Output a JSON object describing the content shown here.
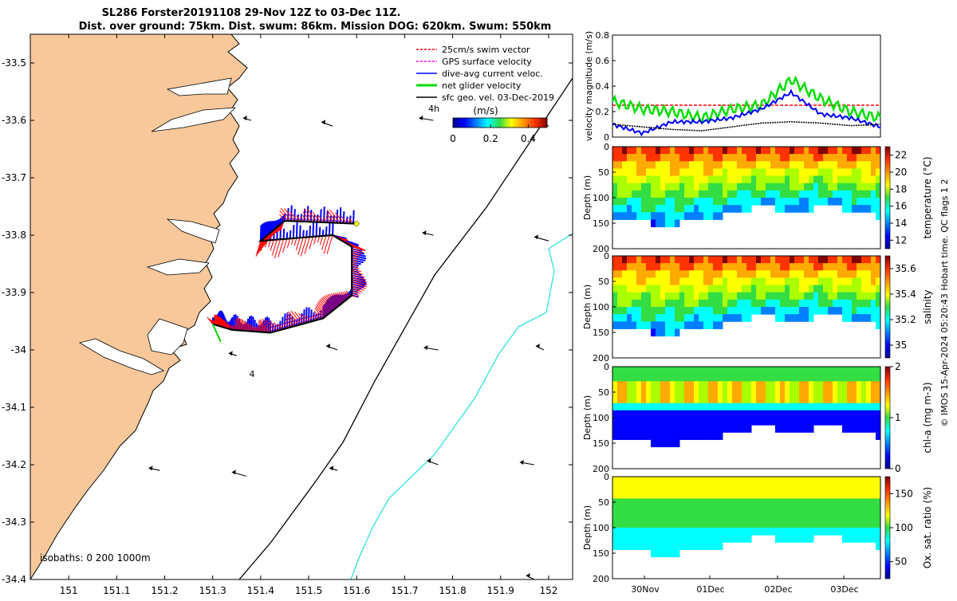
{
  "title": {
    "line1": "SL286 Forster20191108 29-Nov 12Z to 03-Dec 11Z.",
    "line2": "Dist. over ground: 75km. Dist. swum: 86km. Mission DOG: 620km. Swum: 550km"
  },
  "map": {
    "xticks": [
      "151",
      "151.1",
      "151.2",
      "151.3",
      "151.4",
      "151.5",
      "151.6",
      "151.7",
      "151.8",
      "151.9",
      "152"
    ],
    "yticks": [
      "-33.5",
      "-33.6",
      "-33.7",
      "-33.8",
      "-33.9",
      "-34",
      "-34.1",
      "-34.2",
      "-34.3",
      "-34.4"
    ],
    "legend": [
      {
        "label": "25cm/s swim vector",
        "color": "#ff0000"
      },
      {
        "label": "GPS surface velocity",
        "color": "#ff00ff"
      },
      {
        "label": "dive-avg current veloc.",
        "color": "#0000ff"
      },
      {
        "label": "net glider velocity",
        "color": "#00dd00"
      },
      {
        "label": "sfc geo. vel. 03-Dec-2019",
        "color": "#000000"
      }
    ],
    "colorbar": {
      "unit": "(m/s)",
      "ticks": [
        "0",
        "0.2",
        "0.4"
      ]
    },
    "isobaths": "isobaths: 0   200  1000m",
    "label_4h": "4h",
    "label_4": "4",
    "colors": {
      "land": "#f8c89b",
      "isobath200": "#000000",
      "isobath1000": "#33e0e0"
    }
  },
  "panels": {
    "velocity": {
      "ylabel": "velocity magnitude (m/s)",
      "yticks": [
        "0",
        "0.2",
        "0.4",
        "0.6",
        "0.8"
      ]
    },
    "depth_ylabel": "Depth (m)",
    "depth_ticks": [
      "0",
      "50",
      "100",
      "150",
      "200"
    ],
    "temperature": {
      "label": "temperature (°C)",
      "ticks": [
        "12",
        "14",
        "16",
        "18",
        "20",
        "22"
      ]
    },
    "salinity": {
      "label": "salinity",
      "ticks": [
        "35",
        "35.2",
        "35.4",
        "35.6"
      ]
    },
    "chla": {
      "label": "chl-a (mg m-3)",
      "ticks": [
        "0",
        "1",
        "2"
      ]
    },
    "oxygen": {
      "label": "Ox. sat. ratio (%)",
      "ticks": [
        "50",
        "100",
        "150"
      ]
    },
    "time_ticks": [
      "30Nov",
      "01Dec",
      "02Dec",
      "03Dec"
    ]
  },
  "footer": "© IMOS 15-Apr-2024 05:20:43 Hobart time. QC flags 1  2",
  "chart_data": [
    {
      "type": "scatter",
      "title": "SL286 Forster20191108 29-Nov 12Z to 03-Dec 11Z.",
      "xlim": [
        150.92,
        152.05
      ],
      "ylim": [
        -34.4,
        -33.45
      ],
      "track": {
        "x": [
          151.3,
          151.34,
          151.42,
          151.53,
          151.59,
          151.59,
          151.55,
          151.4,
          151.45,
          151.6
        ],
        "y": [
          -33.955,
          -33.965,
          -33.97,
          -33.945,
          -33.905,
          -33.82,
          -33.8,
          -33.81,
          -33.775,
          -33.78
        ]
      },
      "surface_geo_vel": [
        {
          "x": 151.38,
          "y": -33.6
        },
        {
          "x": 151.55,
          "y": -33.61
        },
        {
          "x": 151.76,
          "y": -33.6
        },
        {
          "x": 152.0,
          "y": -33.61
        },
        {
          "x": 151.76,
          "y": -33.8
        },
        {
          "x": 152.0,
          "y": -33.81
        },
        {
          "x": 151.35,
          "y": -34.01
        },
        {
          "x": 151.56,
          "y": -34.0
        },
        {
          "x": 151.77,
          "y": -34.0
        },
        {
          "x": 151.99,
          "y": -34.0
        },
        {
          "x": 151.19,
          "y": -34.21
        },
        {
          "x": 151.37,
          "y": -34.22
        },
        {
          "x": 151.56,
          "y": -34.21
        },
        {
          "x": 151.77,
          "y": -34.2
        },
        {
          "x": 151.97,
          "y": -34.2
        },
        {
          "x": 151.97,
          "y": -34.4
        }
      ]
    },
    {
      "type": "line",
      "ylabel": "velocity magnitude (m/s)",
      "ylim": [
        0,
        0.8
      ],
      "x": [
        "29.5Nov",
        "30Nov",
        "30.5Nov",
        "01Dec",
        "01.5Dec",
        "02Dec",
        "02.2Dec",
        "02.5Dec",
        "03Dec",
        "03.45Dec"
      ],
      "series": [
        {
          "name": "25cm/s swim vector",
          "color": "#ff0000",
          "values": [
            0.25,
            0.25,
            0.25,
            0.25,
            0.25,
            0.25,
            0.25,
            0.25,
            0.25,
            0.25
          ]
        },
        {
          "name": "net glider velocity",
          "color": "#00dd00",
          "values": [
            0.28,
            0.22,
            0.2,
            0.15,
            0.22,
            0.25,
            0.45,
            0.3,
            0.2,
            0.15
          ]
        },
        {
          "name": "dive-avg current veloc.",
          "color": "#0000ff",
          "values": [
            0.1,
            0.03,
            0.12,
            0.12,
            0.15,
            0.22,
            0.35,
            0.18,
            0.15,
            0.08
          ]
        },
        {
          "name": "sfc geo. vel. 03-Dec-2019",
          "color": "#000000",
          "values": [
            0.1,
            0.08,
            0.06,
            0.05,
            0.08,
            0.11,
            0.12,
            0.11,
            0.09,
            0.1
          ]
        }
      ]
    },
    {
      "type": "heatmap",
      "label": "temperature (°C)",
      "clim": [
        11,
        23
      ],
      "ylim": [
        200,
        0
      ],
      "ylabel": "Depth (m)"
    },
    {
      "type": "heatmap",
      "label": "salinity",
      "clim": [
        34.9,
        35.7
      ],
      "ylim": [
        200,
        0
      ],
      "ylabel": "Depth (m)"
    },
    {
      "type": "heatmap",
      "label": "chl-a (mg m-3)",
      "clim": [
        0,
        2
      ],
      "ylim": [
        200,
        0
      ],
      "ylabel": "Depth (m)"
    },
    {
      "type": "heatmap",
      "label": "Ox. sat. ratio (%)",
      "clim": [
        25,
        175
      ],
      "ylim": [
        200,
        0
      ],
      "ylabel": "Depth (m)"
    }
  ]
}
